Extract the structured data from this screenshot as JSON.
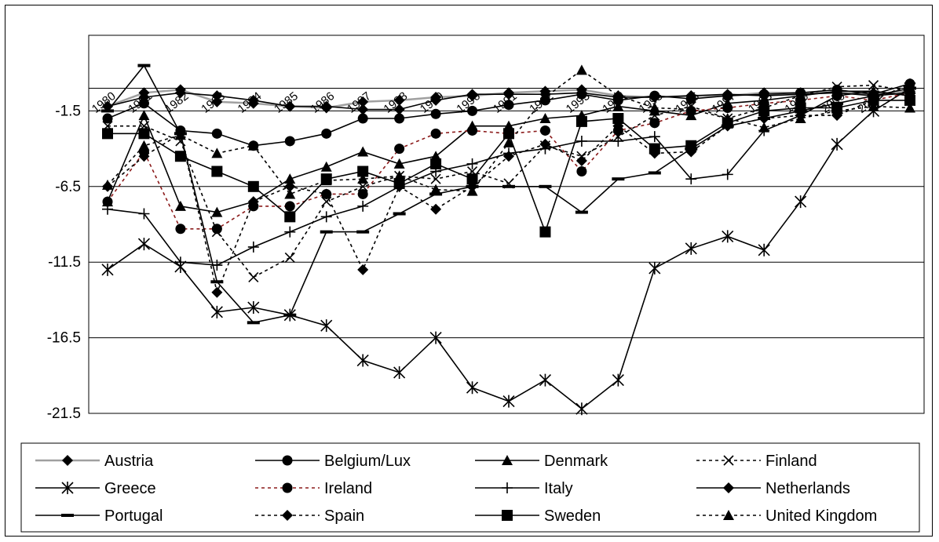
{
  "chart_data": {
    "type": "line",
    "title": "",
    "xlabel": "",
    "ylabel": "",
    "categories": [
      "1980",
      "1981",
      "1982",
      "1983",
      "1984",
      "1985",
      "1986",
      "1987",
      "1988",
      "1989",
      "1990",
      "1991",
      "1992",
      "1993",
      "1994",
      "1995",
      "1996",
      "1997",
      "1998",
      "1999",
      "2000",
      "2001",
      "2002"
    ],
    "category_labels": [
      "1980",
      "1981",
      "1982",
      "1983",
      "1984",
      "1985",
      "1986",
      "1987",
      "1988",
      "1989",
      "1990",
      "1991",
      "1992",
      "1993",
      "1994",
      "1995",
      "1996",
      "1997",
      "1998",
      "1999",
      "2000",
      "2001"
    ],
    "y_ticks": [
      "-1.5",
      "-6.5",
      "-11.5",
      "-16.5",
      "-21.5"
    ],
    "ylim": [
      -21.5,
      3.5
    ],
    "reference_lines": [
      0,
      -1.5,
      -6.5,
      -11.5,
      -16.5
    ],
    "grid": "horizontal",
    "legend_position": "bottom",
    "colors": {
      "black": "#000000",
      "austria_line": "#a0a0a0",
      "ireland_line": "#8b1a1a"
    },
    "series": [
      {
        "name": "Austria",
        "marker": "diamond",
        "dash": "solid",
        "values": [
          -1.2,
          -0.3,
          -0.1,
          -0.9,
          -1.0,
          -1.2,
          -1.3,
          -0.9,
          -0.8,
          -0.6,
          -0.5,
          -0.3,
          -0.2,
          -0.1,
          -0.5,
          -0.6,
          -0.5,
          -0.5,
          -0.3,
          -0.3,
          -0.3,
          -0.4,
          -0.2
        ]
      },
      {
        "name": "Belgium/Lux",
        "marker": "circle",
        "dash": "solid",
        "values": [
          -2.0,
          -1.0,
          -2.8,
          -3.0,
          -3.8,
          -3.5,
          -3.0,
          -2.0,
          -2.0,
          -1.7,
          -1.5,
          -1.1,
          -0.8,
          -0.4,
          -0.8,
          -0.5,
          -0.7,
          -0.5,
          -0.4,
          -0.3,
          -0.1,
          -0.4,
          0.3
        ]
      },
      {
        "name": "Denmark",
        "marker": "triangle",
        "dash": "solid",
        "values": [
          -7.5,
          -1.8,
          -7.8,
          -8.2,
          -7.5,
          -6.0,
          -5.2,
          -4.2,
          -5.0,
          -4.5,
          -2.5,
          -2.5,
          -2.0,
          -1.8,
          -1.2,
          -1.5,
          -1.8,
          -1.0,
          -0.8,
          -0.5,
          -0.2,
          -0.2,
          -0.5
        ]
      },
      {
        "name": "Finland",
        "marker": "x",
        "dash": "dashed",
        "values": [
          -2.5,
          -2.5,
          -3.5,
          -9.5,
          -12.5,
          -11.2,
          -7.5,
          -6.5,
          -5.8,
          -6.0,
          -5.5,
          -6.3,
          -3.8,
          -4.5,
          -3.2,
          -1.8,
          -1.2,
          -2.0,
          -1.3,
          -0.5,
          0.1,
          0.2,
          -0.2
        ]
      },
      {
        "name": "Greece",
        "marker": "asterisk",
        "dash": "solid",
        "values": [
          -12.0,
          -10.3,
          -11.8,
          -14.8,
          -14.5,
          -15.0,
          -15.7,
          -18.0,
          -18.8,
          -16.5,
          -19.8,
          -20.7,
          -19.3,
          -21.2,
          -19.3,
          -11.9,
          -10.6,
          -9.8,
          -10.7,
          -7.5,
          -3.7,
          -1.5,
          0.0
        ]
      },
      {
        "name": "Ireland",
        "marker": "circle",
        "dash": "dashed",
        "values": [
          -7.5,
          -4.2,
          -9.3,
          -9.3,
          -7.8,
          -7.8,
          -7.0,
          -7.0,
          -4.0,
          -3.0,
          -2.8,
          -3.0,
          -2.8,
          -5.5,
          -2.8,
          -2.3,
          -1.5,
          -1.3,
          -1.0,
          -0.8,
          -0.5,
          -0.8,
          -0.3
        ]
      },
      {
        "name": "Italy",
        "marker": "plus",
        "dash": "solid",
        "values": [
          -8.0,
          -8.3,
          -11.5,
          -11.7,
          -10.5,
          -9.5,
          -8.5,
          -7.8,
          -6.5,
          -5.5,
          -5.0,
          -4.3,
          -4.0,
          -3.5,
          -3.5,
          -3.2,
          -6.0,
          -5.7,
          -2.8,
          -1.8,
          -0.5,
          -0.2,
          -0.5
        ]
      },
      {
        "name": "Netherlands",
        "marker": "diamond",
        "dash": "solid",
        "values": [
          -1.2,
          -0.6,
          -0.3,
          -0.5,
          -0.8,
          -1.2,
          -1.2,
          -1.4,
          -1.4,
          -0.8,
          -0.4,
          -0.4,
          -0.4,
          -0.3,
          -0.6,
          -0.6,
          -0.5,
          -0.4,
          -0.5,
          -0.4,
          -0.3,
          -0.5,
          -0.3
        ]
      },
      {
        "name": "Portugal",
        "marker": "dash",
        "dash": "solid",
        "values": [
          -1.5,
          1.5,
          -3.0,
          -12.8,
          -15.5,
          -15.0,
          -9.5,
          -9.5,
          -8.3,
          -7.0,
          -6.5,
          -6.5,
          -6.5,
          -8.2,
          -6.0,
          -5.6,
          -4.0,
          -2.5,
          -2.0,
          -1.5,
          -1.0,
          -0.5,
          0.0
        ]
      },
      {
        "name": "Spain",
        "marker": "diamond",
        "dash": "dashed",
        "values": [
          -6.5,
          -4.5,
          -3.0,
          -13.5,
          -7.5,
          -6.5,
          -7.0,
          -12.0,
          -6.5,
          -8.0,
          -6.5,
          -4.5,
          -3.7,
          -4.8,
          -2.5,
          -4.3,
          -4.2,
          -2.5,
          -2.0,
          -1.8,
          -1.8,
          -0.8,
          0.3
        ]
      },
      {
        "name": "Sweden",
        "marker": "square",
        "dash": "solid",
        "values": [
          -3.0,
          -3.0,
          -4.5,
          -5.5,
          -6.5,
          -8.5,
          -6.0,
          -5.5,
          -6.3,
          -5.0,
          -6.0,
          -3.0,
          -9.5,
          -2.2,
          -2.0,
          -4.0,
          -3.8,
          -2.3,
          -1.5,
          -1.3,
          -1.3,
          -0.8,
          -0.8
        ]
      },
      {
        "name": "United Kingdom",
        "marker": "triangle",
        "dash": "dashed",
        "values": [
          -6.4,
          -3.8,
          -3.1,
          -4.3,
          -3.8,
          -7.0,
          -6.1,
          -6.0,
          -5.8,
          -6.7,
          -6.8,
          -3.6,
          -0.6,
          1.2,
          -0.5,
          -1.3,
          -1.4,
          -2.0,
          -2.6,
          -2.0,
          -1.5,
          -1.2,
          -1.3
        ]
      }
    ]
  }
}
